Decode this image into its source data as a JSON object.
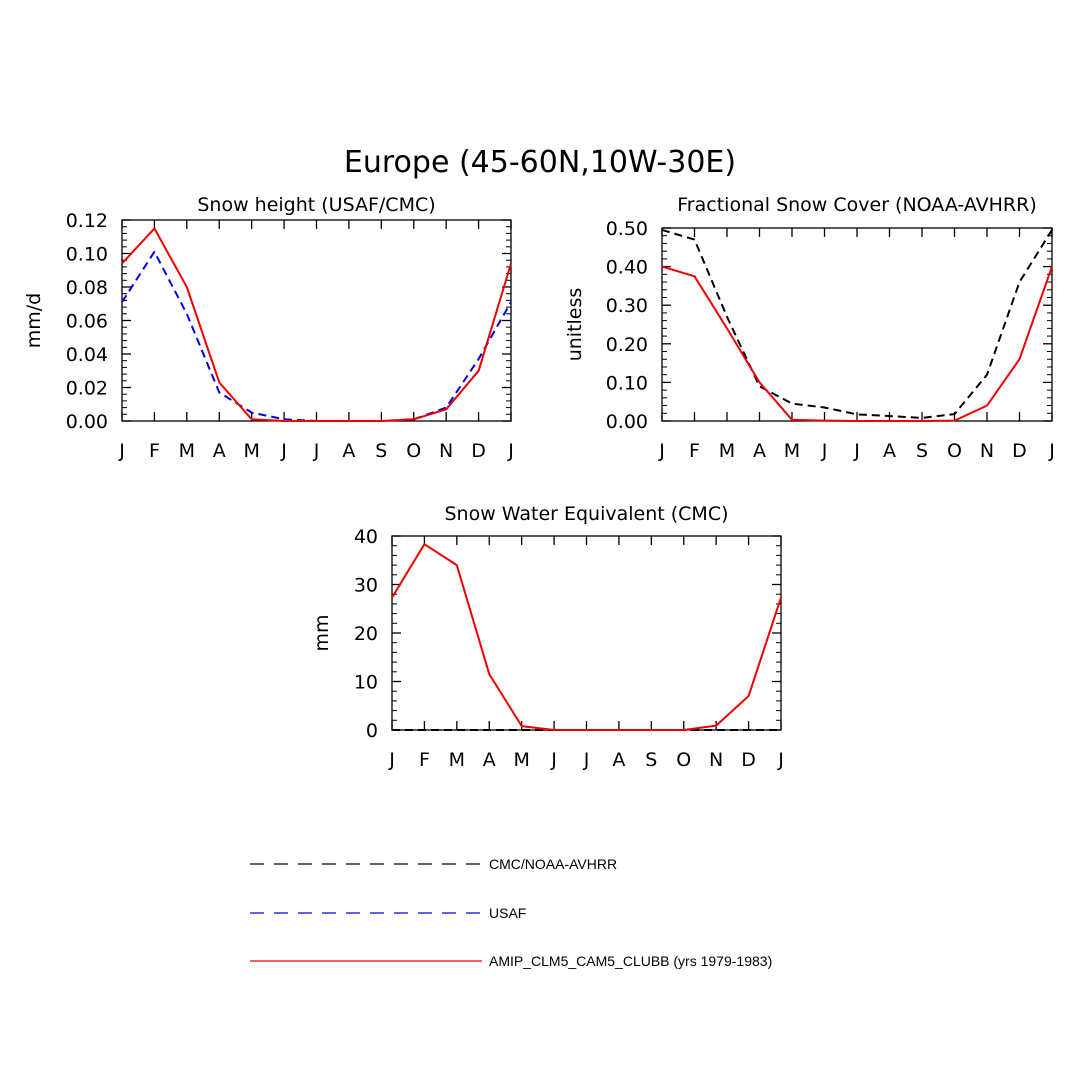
{
  "title": "Europe (45-60N,10W-30E)",
  "colors": {
    "obs": "#000000",
    "usaf": "#0000dd",
    "model": "#ee0000"
  },
  "legend": [
    {
      "label": "CMC/NOAA-AVHRR",
      "color": "#000000",
      "style": "dashed"
    },
    {
      "label": "USAF",
      "color": "#0000dd",
      "style": "dashed"
    },
    {
      "label": "AMIP_CLM5_CAM5_CLUBB (yrs 1979-1983)",
      "color": "#ee0000",
      "style": "solid"
    }
  ],
  "chart_data": [
    {
      "type": "line",
      "title": "Snow height (USAF/CMC)",
      "xlabel": "",
      "ylabel": "mm/d",
      "categories": [
        "J",
        "F",
        "M",
        "A",
        "M",
        "J",
        "J",
        "A",
        "S",
        "O",
        "N",
        "D",
        "J"
      ],
      "ylim": [
        0,
        0.12
      ],
      "yticks": [
        0,
        0.02,
        0.04,
        0.06,
        0.08,
        0.1,
        0.12
      ],
      "ytick_labels": [
        "0.00",
        "0.02",
        "0.04",
        "0.06",
        "0.08",
        "0.10",
        "0.12"
      ],
      "series": [
        {
          "name": "USAF",
          "color": "#0000dd",
          "style": "dashed",
          "values": [
            0.071,
            0.101,
            0.064,
            0.017,
            0.005,
            0.001,
            0.0,
            0.0,
            0.0,
            0.001,
            0.008,
            0.037,
            0.071
          ]
        },
        {
          "name": "AMIP_CLM5_CAM5_CLUBB (yrs 1979-1983)",
          "color": "#ee0000",
          "style": "solid",
          "values": [
            0.094,
            0.115,
            0.08,
            0.023,
            0.001,
            0.0,
            0.0,
            0.0,
            0.0,
            0.001,
            0.007,
            0.03,
            0.094
          ]
        }
      ]
    },
    {
      "type": "line",
      "title": "Fractional Snow Cover (NOAA-AVHRR)",
      "xlabel": "",
      "ylabel": "unitless",
      "categories": [
        "J",
        "F",
        "M",
        "A",
        "M",
        "J",
        "J",
        "A",
        "S",
        "O",
        "N",
        "D",
        "J"
      ],
      "ylim": [
        0,
        0.5
      ],
      "yticks": [
        0,
        0.1,
        0.2,
        0.3,
        0.4,
        0.5
      ],
      "ytick_labels": [
        "0.00",
        "0.10",
        "0.20",
        "0.30",
        "0.40",
        "0.50"
      ],
      "series": [
        {
          "name": "CMC/NOAA-AVHRR",
          "color": "#000000",
          "style": "dashed",
          "values": [
            0.495,
            0.47,
            0.27,
            0.09,
            0.045,
            0.035,
            0.017,
            0.013,
            0.008,
            0.018,
            0.12,
            0.36,
            0.495
          ]
        },
        {
          "name": "AMIP_CLM5_CAM5_CLUBB (yrs 1979-1983)",
          "color": "#ee0000",
          "style": "solid",
          "values": [
            0.4,
            0.375,
            0.24,
            0.1,
            0.003,
            0.001,
            0.0,
            0.0,
            0.0,
            0.001,
            0.04,
            0.16,
            0.4
          ]
        }
      ]
    },
    {
      "type": "line",
      "title": "Snow Water Equivalent (CMC)",
      "xlabel": "",
      "ylabel": "mm",
      "categories": [
        "J",
        "F",
        "M",
        "A",
        "M",
        "J",
        "J",
        "A",
        "S",
        "O",
        "N",
        "D",
        "J"
      ],
      "ylim": [
        0,
        40
      ],
      "yticks": [
        0,
        10,
        20,
        30,
        40
      ],
      "ytick_labels": [
        "0",
        "10",
        "20",
        "30",
        "40"
      ],
      "series": [
        {
          "name": "CMC/NOAA-AVHRR",
          "color": "#000000",
          "style": "dashed",
          "values": [
            0,
            0,
            0,
            0,
            0,
            0,
            0,
            0,
            0,
            0,
            0,
            0,
            0
          ]
        },
        {
          "name": "AMIP_CLM5_CAM5_CLUBB (yrs 1979-1983)",
          "color": "#ee0000",
          "style": "solid",
          "values": [
            27.3,
            38.3,
            34.0,
            11.5,
            0.8,
            0.0,
            0.0,
            0.0,
            0.0,
            0.0,
            0.9,
            7.0,
            27.3
          ]
        }
      ]
    }
  ]
}
